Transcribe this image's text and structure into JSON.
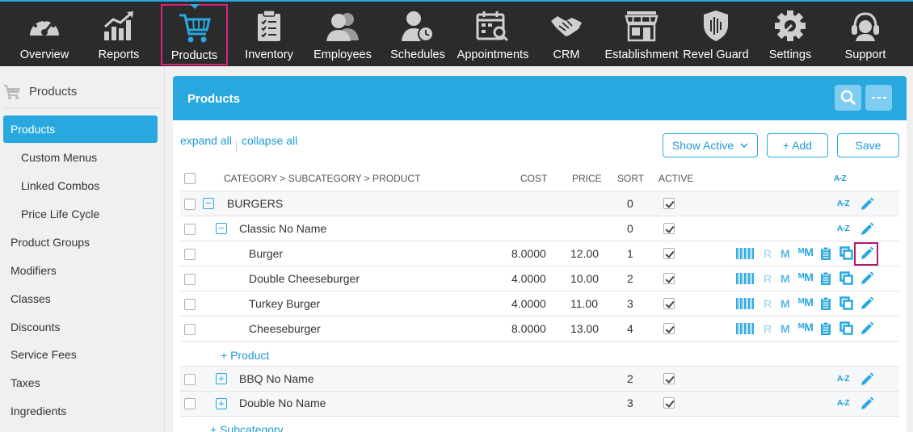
{
  "nav": {
    "items": [
      {
        "label": "Overview",
        "icon": "dashboard-gauge-icon"
      },
      {
        "label": "Reports",
        "icon": "bar-chart-icon"
      },
      {
        "label": "Products",
        "icon": "shopping-cart-icon",
        "active": true
      },
      {
        "label": "Inventory",
        "icon": "clipboard-checklist-icon"
      },
      {
        "label": "Employees",
        "icon": "people-icon"
      },
      {
        "label": "Schedules",
        "icon": "person-clock-icon"
      },
      {
        "label": "Appointments",
        "icon": "calendar-search-icon"
      },
      {
        "label": "CRM",
        "icon": "handshake-icon"
      },
      {
        "label": "Establishment",
        "icon": "storefront-icon"
      },
      {
        "label": "Revel Guard",
        "icon": "shield-icon"
      },
      {
        "label": "Settings",
        "icon": "gear-icon"
      },
      {
        "label": "Support",
        "icon": "headset-icon"
      }
    ],
    "accent_color": "#29a8e0",
    "highlight_color": "#d6247c"
  },
  "sidebar": {
    "title": "Products",
    "items": [
      {
        "label": "Products",
        "active": true
      },
      {
        "label": "Custom Menus",
        "sub": true
      },
      {
        "label": "Linked Combos",
        "sub": true
      },
      {
        "label": "Price Life Cycle",
        "sub": true
      },
      {
        "label": "Product Groups"
      },
      {
        "label": "Modifiers"
      },
      {
        "label": "Classes"
      },
      {
        "label": "Discounts"
      },
      {
        "label": "Service Fees"
      },
      {
        "label": "Taxes"
      },
      {
        "label": "Ingredients"
      }
    ]
  },
  "panel": {
    "title": "Products",
    "search_icon": "search-icon",
    "more_icon": "more-dots-icon",
    "expand_all": "expand all",
    "collapse_all": "collapse all",
    "filter_label": "Show Active",
    "add_label": "+ Add",
    "save_label": "Save"
  },
  "table": {
    "headers": {
      "name": "CATEGORY > SUBCATEGORY > PRODUCT",
      "cost": "COST",
      "price": "PRICE",
      "sort": "SORT",
      "active": "ACTIVE",
      "az": "A-Z"
    },
    "rows": [
      {
        "type": "category",
        "name": "BURGERS",
        "sort": "0",
        "active": true,
        "expanded": true
      },
      {
        "type": "subcategory",
        "name": "Classic No Name",
        "sort": "0",
        "active": true,
        "expanded": true
      },
      {
        "type": "product",
        "name": "Burger",
        "cost": "8.0000",
        "price": "12.00",
        "sort": "1",
        "active": true
      },
      {
        "type": "product",
        "name": "Double Cheeseburger",
        "cost": "4.0000",
        "price": "10.00",
        "sort": "2",
        "active": true
      },
      {
        "type": "product",
        "name": "Turkey Burger",
        "cost": "4.0000",
        "price": "11.00",
        "sort": "3",
        "active": true
      },
      {
        "type": "product",
        "name": "Cheeseburger",
        "cost": "8.0000",
        "price": "13.00",
        "sort": "4",
        "active": true
      },
      {
        "type": "subcategory",
        "name": "BBQ No Name",
        "sort": "2",
        "active": true,
        "expanded": false
      },
      {
        "type": "subcategory",
        "name": "Double No Name",
        "sort": "3",
        "active": true,
        "expanded": false
      }
    ],
    "add_product_label": "+ Product",
    "add_subcategory_label": "+ Subcategory",
    "row_tool_icons": [
      "barcode-icon",
      "r-icon",
      "m-icon",
      "multi-m-icon",
      "clipboard-icon",
      "copy-icon",
      "pencil-icon"
    ]
  }
}
